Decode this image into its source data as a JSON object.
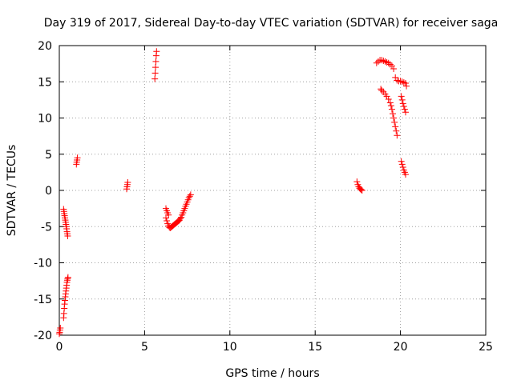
{
  "chart_data": {
    "type": "scatter",
    "title": "Day 319 of 2017, Sidereal Day-to-day VTEC variation (SDTVAR) for receiver saga",
    "xlabel": "GPS time / hours",
    "ylabel": "SDTVAR / TECUs",
    "xlim": [
      0,
      25
    ],
    "ylim": [
      -20,
      20
    ],
    "xticks": [
      0,
      5,
      10,
      15,
      20,
      25
    ],
    "yticks": [
      -20,
      -15,
      -10,
      -5,
      0,
      5,
      10,
      15,
      20
    ],
    "grid": true,
    "marker": "plus",
    "color": "#ff0000",
    "series": [
      {
        "name": "SDTVAR",
        "x": [
          0.0,
          0.02,
          0.04,
          0.06,
          0.25,
          0.27,
          0.29,
          0.31,
          0.33,
          0.35,
          0.37,
          0.39,
          0.41,
          0.43,
          0.45,
          0.47,
          0.49,
          0.25,
          0.27,
          0.29,
          0.31,
          0.33,
          0.35,
          0.37,
          0.39,
          0.41,
          0.43,
          0.45,
          0.47,
          0.49,
          0.51,
          1.0,
          1.02,
          1.04,
          1.06,
          3.95,
          3.97,
          3.99,
          4.01,
          5.6,
          5.62,
          5.64,
          5.66,
          5.68,
          5.7,
          6.25,
          6.3,
          6.35,
          6.4,
          6.45,
          6.5,
          6.55,
          6.6,
          6.65,
          6.7,
          6.75,
          6.8,
          6.85,
          6.9,
          6.95,
          7.0,
          7.05,
          7.1,
          7.15,
          7.2,
          7.25,
          7.3,
          7.35,
          7.4,
          7.45,
          7.5,
          7.55,
          7.6,
          7.65,
          7.7,
          6.25,
          6.3,
          6.35,
          6.4,
          17.45,
          17.5,
          17.55,
          17.6,
          17.65,
          17.7,
          17.75,
          18.6,
          18.7,
          18.8,
          18.9,
          19.0,
          19.1,
          19.2,
          19.3,
          19.4,
          19.5,
          19.6,
          19.7,
          19.8,
          19.9,
          20.0,
          20.1,
          20.2,
          20.3,
          20.35,
          18.85,
          18.9,
          19.0,
          19.1,
          19.2,
          19.3,
          19.4,
          19.45,
          19.5,
          19.55,
          19.6,
          19.65,
          19.7,
          19.75,
          19.8,
          20.05,
          20.1,
          20.15,
          20.2,
          20.25,
          20.3,
          20.05,
          20.1,
          20.15,
          20.2,
          20.25,
          20.3
        ],
        "y": [
          -19.8,
          -19.6,
          -19.3,
          -19.0,
          -2.6,
          -2.9,
          -3.2,
          -3.5,
          -3.8,
          -4.1,
          -4.4,
          -4.7,
          -5.0,
          -5.3,
          -5.7,
          -6.0,
          -6.3,
          -17.6,
          -17.0,
          -16.3,
          -15.7,
          -15.2,
          -14.7,
          -14.3,
          -13.9,
          -13.5,
          -13.1,
          -12.7,
          -12.4,
          -12.2,
          -12.0,
          3.6,
          3.9,
          4.2,
          4.5,
          0.2,
          0.5,
          0.8,
          1.1,
          15.4,
          16.2,
          17.0,
          17.8,
          18.6,
          19.2,
          -3.8,
          -4.2,
          -4.6,
          -4.9,
          -5.1,
          -5.2,
          -5.1,
          -5.0,
          -4.9,
          -4.8,
          -4.7,
          -4.6,
          -4.5,
          -4.4,
          -4.3,
          -4.2,
          -4.1,
          -3.9,
          -3.7,
          -3.4,
          -3.1,
          -2.8,
          -2.5,
          -2.2,
          -1.9,
          -1.6,
          -1.3,
          -1.0,
          -0.8,
          -0.6,
          -2.5,
          -2.8,
          -3.1,
          -3.4,
          1.2,
          0.8,
          0.5,
          0.3,
          0.2,
          0.1,
          0.0,
          17.6,
          17.8,
          18.0,
          18.0,
          17.9,
          17.8,
          17.7,
          17.6,
          17.4,
          17.2,
          16.8,
          15.6,
          15.2,
          15.1,
          15.1,
          15.0,
          14.9,
          14.8,
          14.4,
          14.0,
          13.8,
          13.6,
          13.3,
          13.0,
          12.6,
          12.1,
          11.7,
          11.2,
          10.6,
          10.0,
          9.4,
          8.8,
          8.2,
          7.6,
          13.0,
          12.5,
          12.0,
          11.6,
          11.2,
          10.8,
          4.0,
          3.6,
          3.2,
          2.8,
          2.5,
          2.2
        ]
      }
    ]
  }
}
